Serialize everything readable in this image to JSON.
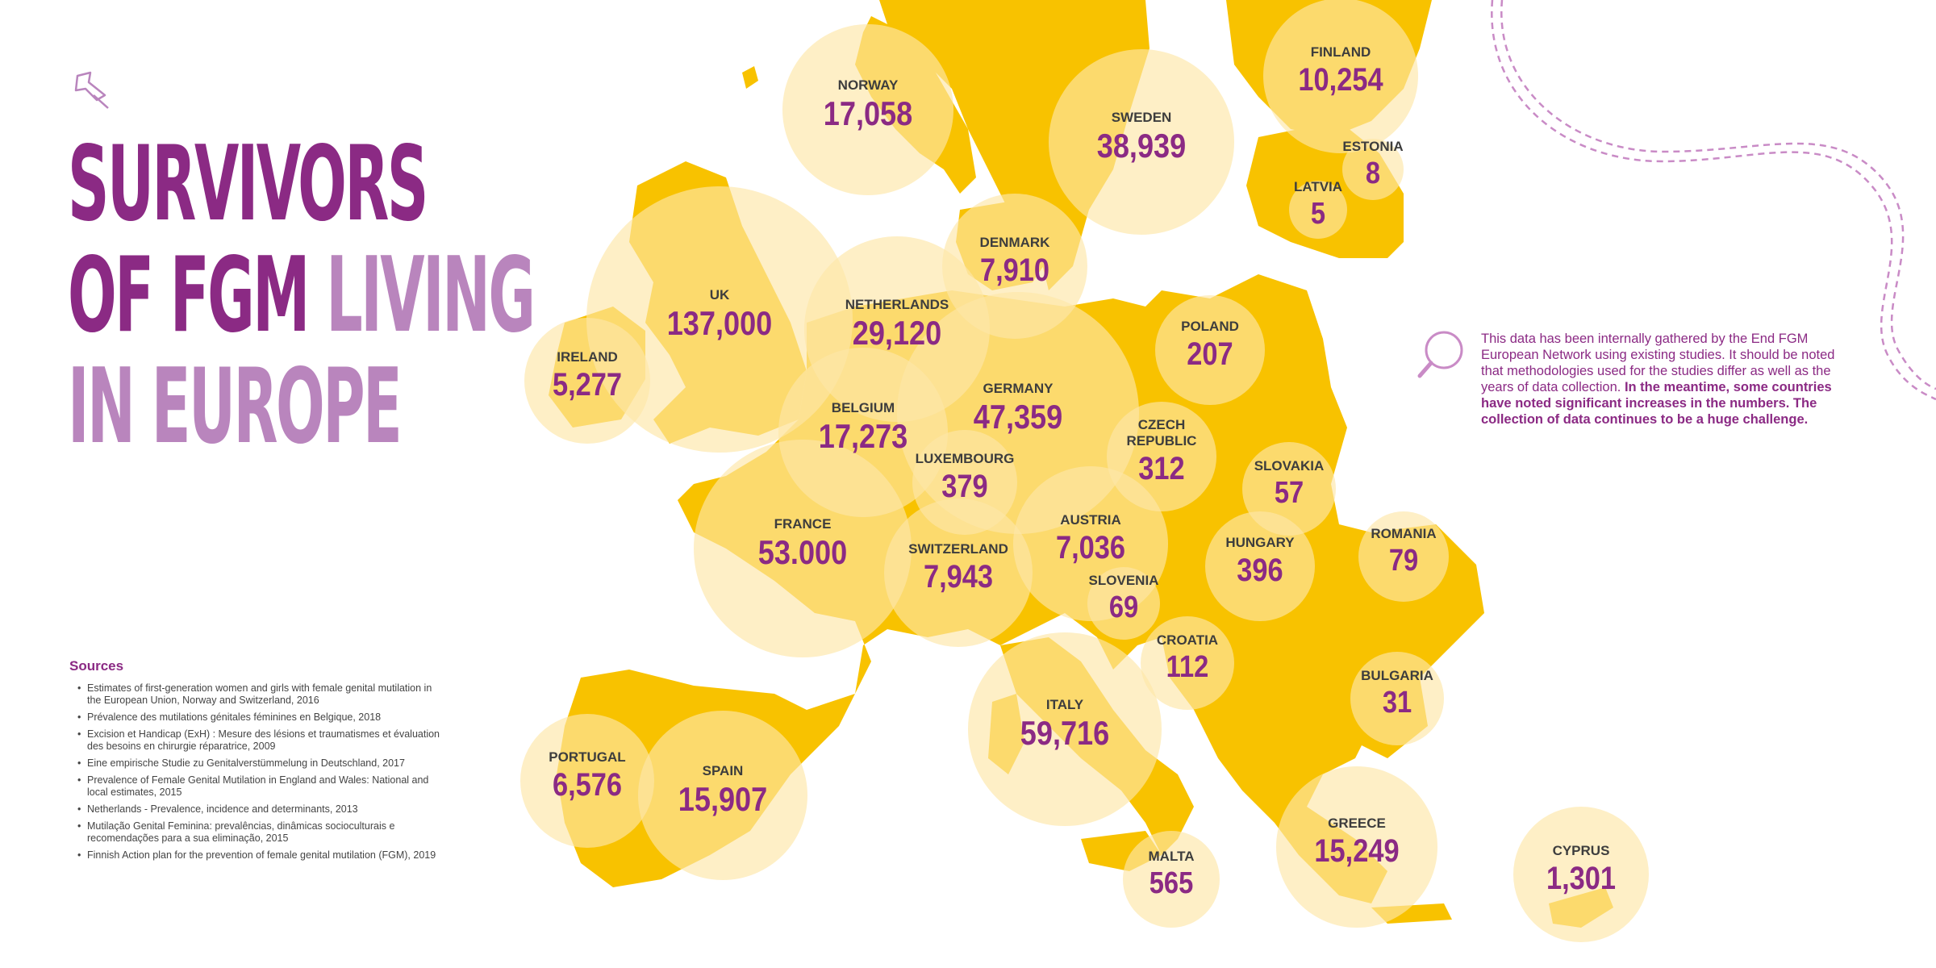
{
  "title": {
    "line1": "SURVIVORS",
    "line2_dark": "OF FGM ",
    "line2_light": "LIVING",
    "line3": "IN EUROPE"
  },
  "icons": [
    "push-pin-icon",
    "magnifier-icon"
  ],
  "colors": {
    "land": "#f8c200",
    "bubble": "#fde7a8",
    "title_dark": "#8b2a84",
    "title_light": "#b985bd",
    "value": "#8b2a84",
    "country": "#3d3d3d"
  },
  "note": {
    "normal": "This data has been internally gathered by the End FGM European Network using existing studies. It should be noted that methodologies used for the studies differ as well as the years of data collection. ",
    "bold": "In the meantime, some countries have noted significant increases in the numbers. The collection of data continues to be a huge challenge."
  },
  "sources": {
    "heading": "Sources",
    "items": [
      "Estimates of first-generation women and girls with female genital mutilation in the European Union, Norway and Switzerland, 2016",
      "Prévalence des mutilations génitales féminines en Belgique, 2018",
      "Excision et Handicap (ExH) : Mesure des lésions et traumatismes et évaluation des besoins en chirurgie réparatrice, 2009",
      "Eine empirische Studie zu Genitalverstümmelung in Deutschland, 2017",
      "Prevalence of Female Genital Mutilation in England and Wales: National and local estimates, 2015",
      "Netherlands - Prevalence, incidence and determinants, 2013",
      "Mutilação Genital Feminina: prevalências, dinâmicas socioculturais e recomendações para a sua eliminação, 2015",
      "Finnish Action plan for the prevention of female genital mutilation (FGM), 2019"
    ]
  },
  "countries": [
    {
      "id": "norway",
      "name": "NORWAY",
      "value": "17,058"
    },
    {
      "id": "sweden",
      "name": "SWEDEN",
      "value": "38,939"
    },
    {
      "id": "finland",
      "name": "FINLAND",
      "value": "10,254"
    },
    {
      "id": "estonia",
      "name": "ESTONIA",
      "value": "8"
    },
    {
      "id": "latvia",
      "name": "LATVIA",
      "value": "5"
    },
    {
      "id": "denmark",
      "name": "DENMARK",
      "value": "7,910"
    },
    {
      "id": "uk",
      "name": "UK",
      "value": "137,000"
    },
    {
      "id": "ireland",
      "name": "IRELAND",
      "value": "5,277"
    },
    {
      "id": "netherlands",
      "name": "NETHERLANDS",
      "value": "29,120"
    },
    {
      "id": "belgium",
      "name": "BELGIUM",
      "value": "17,273"
    },
    {
      "id": "germany",
      "name": "GERMANY",
      "value": "47,359"
    },
    {
      "id": "poland",
      "name": "POLAND",
      "value": "207"
    },
    {
      "id": "czech",
      "name": "CZECH REPUBLIC",
      "value": "312"
    },
    {
      "id": "luxembourg",
      "name": "LUXEMBOURG",
      "value": "379"
    },
    {
      "id": "slovakia",
      "name": "SLOVAKIA",
      "value": "57"
    },
    {
      "id": "france",
      "name": "FRANCE",
      "value": "53.000"
    },
    {
      "id": "austria",
      "name": "AUSTRIA",
      "value": "7,036"
    },
    {
      "id": "switzerland",
      "name": "SWITZERLAND",
      "value": "7,943"
    },
    {
      "id": "hungary",
      "name": "HUNGARY",
      "value": "396"
    },
    {
      "id": "romania",
      "name": "ROMANIA",
      "value": "79"
    },
    {
      "id": "slovenia",
      "name": "SLOVENIA",
      "value": "69"
    },
    {
      "id": "croatia",
      "name": "CROATIA",
      "value": "112"
    },
    {
      "id": "bulgaria",
      "name": "BULGARIA",
      "value": "31"
    },
    {
      "id": "italy",
      "name": "ITALY",
      "value": "59,716"
    },
    {
      "id": "portugal",
      "name": "PORTUGAL",
      "value": "6,576"
    },
    {
      "id": "spain",
      "name": "SPAIN",
      "value": "15,907"
    },
    {
      "id": "greece",
      "name": "GREECE",
      "value": "15,249"
    },
    {
      "id": "malta",
      "name": "MALTA",
      "value": "565"
    },
    {
      "id": "cyprus",
      "name": "CYPRUS",
      "value": "1,301"
    }
  ]
}
